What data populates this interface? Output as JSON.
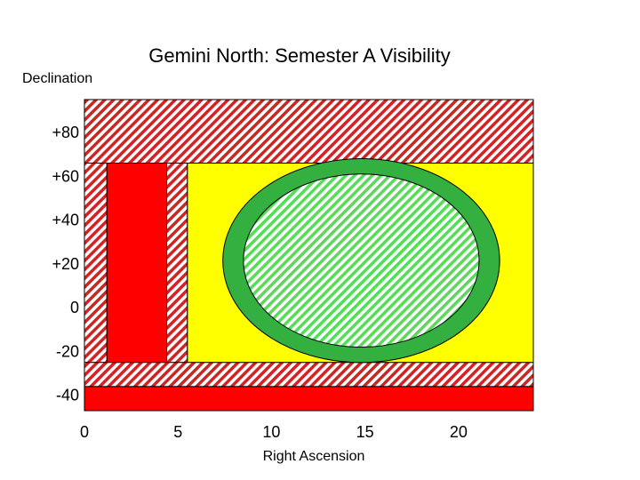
{
  "chart_data": {
    "type": "area",
    "title": "Gemini North: Semester A Visibility",
    "xlabel": "Right Ascension",
    "ylabel": "Declination",
    "xlim": [
      0,
      24
    ],
    "ylim": [
      -47,
      95
    ],
    "x_ticks": [
      0,
      5,
      10,
      15,
      20
    ],
    "y_ticks": [
      {
        "value": 80,
        "label": "+80"
      },
      {
        "value": 60,
        "label": "+60"
      },
      {
        "value": 40,
        "label": "+40"
      },
      {
        "value": 20,
        "label": "+20"
      },
      {
        "value": 0,
        "label": "0"
      },
      {
        "value": -20,
        "label": "-20"
      },
      {
        "value": -40,
        "label": "-40"
      }
    ],
    "grid": false,
    "colors": {
      "red": "#ff0000",
      "yellow": "#ffff00",
      "green": "#33b040",
      "light_green": "#55dd55",
      "hatch_red": "#d22222"
    },
    "regions": [
      {
        "name": "north-band",
        "fill": "hatch-red",
        "x": [
          0,
          24
        ],
        "y": [
          66,
          95
        ]
      },
      {
        "name": "main-field",
        "fill": "yellow",
        "x": [
          5.5,
          24
        ],
        "y": [
          -25,
          66
        ]
      },
      {
        "name": "left-hatch-strip",
        "fill": "hatch-red",
        "x": [
          0,
          1.2
        ],
        "y": [
          -25,
          66
        ]
      },
      {
        "name": "left-red-block",
        "fill": "red",
        "x": [
          1.2,
          4.4
        ],
        "y": [
          -25,
          66
        ]
      },
      {
        "name": "mid-hatch-strip",
        "fill": "hatch-red",
        "x": [
          4.4,
          5.5
        ],
        "y": [
          -25,
          66
        ]
      },
      {
        "name": "south-hatch-band",
        "fill": "hatch-red",
        "x": [
          0,
          24
        ],
        "y": [
          -36,
          -25
        ]
      },
      {
        "name": "south-red-band",
        "fill": "red",
        "x": [
          0,
          24
        ],
        "y": [
          -47,
          -36
        ]
      }
    ],
    "ellipses": [
      {
        "name": "outer-green-ring",
        "fill": "green",
        "center": [
          14.8,
          21.5
        ],
        "radius": [
          7.4,
          46.5
        ]
      },
      {
        "name": "inner-hatched-ellipse",
        "fill": "hatch-green",
        "center": [
          14.8,
          21.5
        ],
        "radius": [
          6.3,
          39.5
        ]
      }
    ]
  }
}
